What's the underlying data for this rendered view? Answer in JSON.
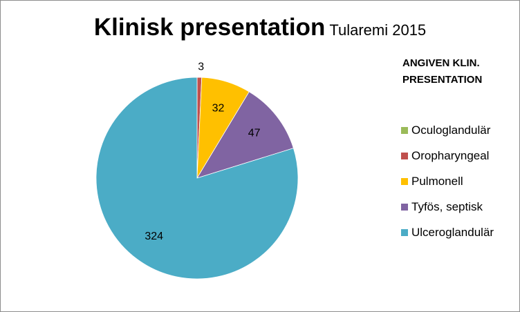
{
  "title": {
    "main": "Klinisk presentation",
    "sub": "Tularemi 2015"
  },
  "chart_data": {
    "type": "pie",
    "title": "Klinisk presentation Tularemi 2015",
    "legend_title": "ANGIVEN KLIN. PRESENTATION",
    "legend_position": "right",
    "categories": [
      "Oculoglandulär",
      "Oropharyngeal",
      "Pulmonell",
      "Tyfös, septisk",
      "Ulceroglandulär"
    ],
    "values": [
      0,
      3,
      32,
      47,
      324
    ],
    "data_labels": [
      "",
      "3",
      "32",
      "47",
      "324"
    ],
    "colors": [
      "#9bbb59",
      "#c0504d",
      "#ffc000",
      "#8064a2",
      "#4bacc6"
    ]
  }
}
